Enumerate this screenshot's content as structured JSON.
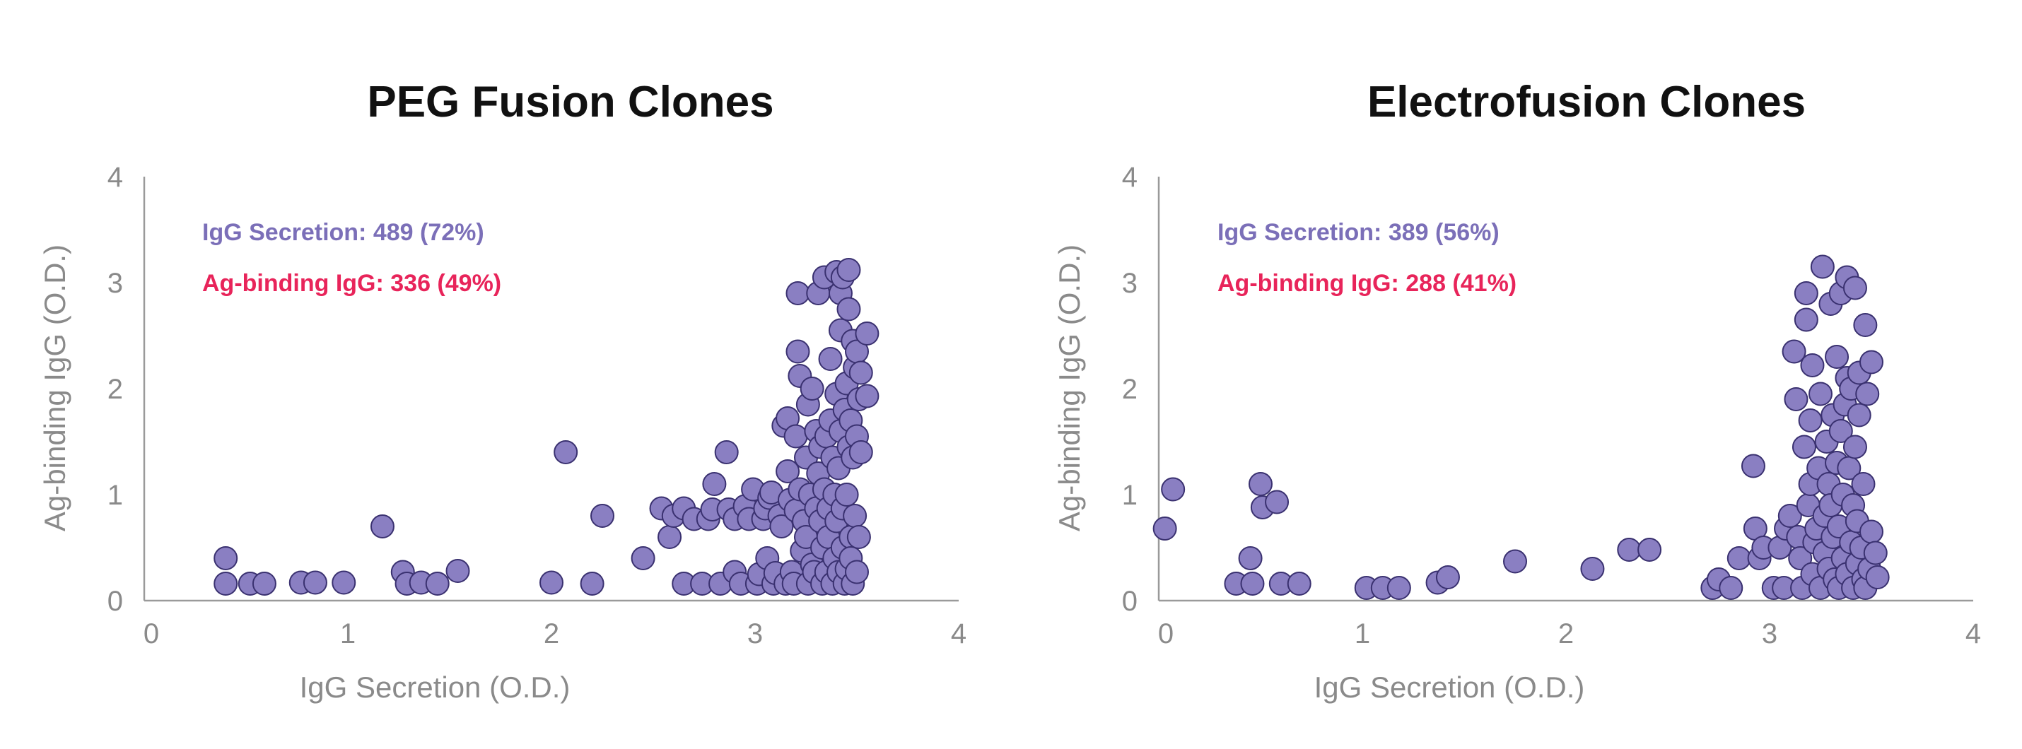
{
  "chart_data": [
    {
      "type": "scatter",
      "title": "PEG Fusion Clones",
      "xlabel": "IgG Secretion (O.D.)",
      "ylabel": "Ag-binding IgG (O.D.)",
      "xlim": [
        0,
        4
      ],
      "ylim": [
        0,
        4
      ],
      "xticks": [
        "0",
        "1",
        "2",
        "3",
        "4"
      ],
      "yticks": [
        "0",
        "1",
        "2",
        "3",
        "4"
      ],
      "annotations": [
        {
          "text": "IgG Secretion: 489 (72%)",
          "color": "#7b6fb8"
        },
        {
          "text": "Ag-binding IgG: 336 (49%)",
          "color": "#e8245a"
        }
      ],
      "point_color": "#8a7fc2",
      "points": [
        [
          0.4,
          0.4
        ],
        [
          0.4,
          0.16
        ],
        [
          0.52,
          0.16
        ],
        [
          0.59,
          0.16
        ],
        [
          0.77,
          0.17
        ],
        [
          0.84,
          0.17
        ],
        [
          0.98,
          0.17
        ],
        [
          1.17,
          0.7
        ],
        [
          1.27,
          0.27
        ],
        [
          1.29,
          0.16
        ],
        [
          1.36,
          0.17
        ],
        [
          1.44,
          0.16
        ],
        [
          1.54,
          0.28
        ],
        [
          2.0,
          0.17
        ],
        [
          2.07,
          1.4
        ],
        [
          2.2,
          0.16
        ],
        [
          2.25,
          0.8
        ],
        [
          2.45,
          0.4
        ],
        [
          2.54,
          0.87
        ],
        [
          2.58,
          0.6
        ],
        [
          2.6,
          0.8
        ],
        [
          2.65,
          0.87
        ],
        [
          2.65,
          0.16
        ],
        [
          2.7,
          0.77
        ],
        [
          2.74,
          0.16
        ],
        [
          2.77,
          0.77
        ],
        [
          2.79,
          0.86
        ],
        [
          2.8,
          1.1
        ],
        [
          2.83,
          0.16
        ],
        [
          2.86,
          1.4
        ],
        [
          2.87,
          0.86
        ],
        [
          2.9,
          0.27
        ],
        [
          2.9,
          0.77
        ],
        [
          2.93,
          0.16
        ],
        [
          2.95,
          0.89
        ],
        [
          2.97,
          0.77
        ],
        [
          2.99,
          1.05
        ],
        [
          3.01,
          0.16
        ],
        [
          3.02,
          0.25
        ],
        [
          3.04,
          0.77
        ],
        [
          3.05,
          0.87
        ],
        [
          3.06,
          0.4
        ],
        [
          3.07,
          0.97
        ],
        [
          3.08,
          1.02
        ],
        [
          3.09,
          0.16
        ],
        [
          3.1,
          0.26
        ],
        [
          3.12,
          0.8
        ],
        [
          3.13,
          0.7
        ],
        [
          3.14,
          1.65
        ],
        [
          3.15,
          0.16
        ],
        [
          3.16,
          1.72
        ],
        [
          3.16,
          1.22
        ],
        [
          3.17,
          0.95
        ],
        [
          3.18,
          0.27
        ],
        [
          3.19,
          0.16
        ],
        [
          3.2,
          1.55
        ],
        [
          3.2,
          0.85
        ],
        [
          3.21,
          2.35
        ],
        [
          3.21,
          2.9
        ],
        [
          3.22,
          2.12
        ],
        [
          3.22,
          1.05
        ],
        [
          3.23,
          0.47
        ],
        [
          3.24,
          0.75
        ],
        [
          3.25,
          0.6
        ],
        [
          3.25,
          1.35
        ],
        [
          3.26,
          0.16
        ],
        [
          3.26,
          1.85
        ],
        [
          3.27,
          1.0
        ],
        [
          3.28,
          2.0
        ],
        [
          3.28,
          0.34
        ],
        [
          3.29,
          0.27
        ],
        [
          3.3,
          1.6
        ],
        [
          3.3,
          0.87
        ],
        [
          3.31,
          1.2
        ],
        [
          3.31,
          2.9
        ],
        [
          3.32,
          0.75
        ],
        [
          3.32,
          1.45
        ],
        [
          3.33,
          0.5
        ],
        [
          3.33,
          0.16
        ],
        [
          3.34,
          1.05
        ],
        [
          3.34,
          3.05
        ],
        [
          3.35,
          0.27
        ],
        [
          3.35,
          1.55
        ],
        [
          3.36,
          0.87
        ],
        [
          3.36,
          0.6
        ],
        [
          3.37,
          2.28
        ],
        [
          3.37,
          1.7
        ],
        [
          3.38,
          1.35
        ],
        [
          3.38,
          0.16
        ],
        [
          3.39,
          0.4
        ],
        [
          3.39,
          1.0
        ],
        [
          3.4,
          3.1
        ],
        [
          3.4,
          1.95
        ],
        [
          3.4,
          0.75
        ],
        [
          3.41,
          1.25
        ],
        [
          3.41,
          0.27
        ],
        [
          3.42,
          2.55
        ],
        [
          3.42,
          2.9
        ],
        [
          3.42,
          1.6
        ],
        [
          3.43,
          3.05
        ],
        [
          3.43,
          0.5
        ],
        [
          3.43,
          0.87
        ],
        [
          3.44,
          1.8
        ],
        [
          3.44,
          0.16
        ],
        [
          3.45,
          1.0
        ],
        [
          3.45,
          2.05
        ],
        [
          3.45,
          0.3
        ],
        [
          3.46,
          1.45
        ],
        [
          3.46,
          2.75
        ],
        [
          3.46,
          3.12
        ],
        [
          3.47,
          0.6
        ],
        [
          3.47,
          1.7
        ],
        [
          3.47,
          0.4
        ],
        [
          3.48,
          2.45
        ],
        [
          3.48,
          1.35
        ],
        [
          3.48,
          0.16
        ],
        [
          3.49,
          2.2
        ],
        [
          3.49,
          0.8
        ],
        [
          3.5,
          2.35
        ],
        [
          3.5,
          1.55
        ],
        [
          3.5,
          0.27
        ],
        [
          3.51,
          1.9
        ],
        [
          3.51,
          0.6
        ],
        [
          3.52,
          1.4
        ],
        [
          3.52,
          2.15
        ],
        [
          3.55,
          2.52
        ],
        [
          3.55,
          1.93
        ]
      ]
    },
    {
      "type": "scatter",
      "title": "Electrofusion Clones",
      "xlabel": "IgG Secretion (O.D.)",
      "ylabel": "Ag-binding IgG (O.D.)",
      "xlim": [
        0,
        4
      ],
      "ylim": [
        0,
        4
      ],
      "xticks": [
        "0",
        "1",
        "2",
        "3",
        "4"
      ],
      "yticks": [
        "0",
        "1",
        "2",
        "3",
        "4"
      ],
      "annotations": [
        {
          "text": "IgG Secretion: 389 (56%)",
          "color": "#7b6fb8"
        },
        {
          "text": "Ag-binding IgG: 288 (41%)",
          "color": "#e8245a"
        }
      ],
      "point_color": "#8a7fc2",
      "points": [
        [
          0.03,
          0.68
        ],
        [
          0.07,
          1.05
        ],
        [
          0.38,
          0.16
        ],
        [
          0.45,
          0.4
        ],
        [
          0.46,
          0.16
        ],
        [
          0.5,
          1.1
        ],
        [
          0.51,
          0.88
        ],
        [
          0.58,
          0.93
        ],
        [
          0.6,
          0.16
        ],
        [
          0.69,
          0.16
        ],
        [
          1.02,
          0.12
        ],
        [
          1.1,
          0.12
        ],
        [
          1.18,
          0.12
        ],
        [
          1.37,
          0.17
        ],
        [
          1.42,
          0.22
        ],
        [
          1.75,
          0.37
        ],
        [
          2.13,
          0.3
        ],
        [
          2.31,
          0.48
        ],
        [
          2.41,
          0.48
        ],
        [
          2.72,
          0.12
        ],
        [
          2.75,
          0.2
        ],
        [
          2.81,
          0.12
        ],
        [
          2.85,
          0.4
        ],
        [
          2.92,
          1.27
        ],
        [
          2.93,
          0.68
        ],
        [
          2.95,
          0.4
        ],
        [
          2.97,
          0.5
        ],
        [
          3.02,
          0.12
        ],
        [
          3.05,
          0.5
        ],
        [
          3.07,
          0.12
        ],
        [
          3.08,
          0.68
        ],
        [
          3.1,
          0.8
        ],
        [
          3.12,
          2.35
        ],
        [
          3.13,
          1.9
        ],
        [
          3.14,
          0.6
        ],
        [
          3.15,
          0.4
        ],
        [
          3.16,
          0.12
        ],
        [
          3.17,
          1.45
        ],
        [
          3.18,
          2.65
        ],
        [
          3.18,
          2.9
        ],
        [
          3.19,
          0.9
        ],
        [
          3.2,
          1.1
        ],
        [
          3.2,
          1.7
        ],
        [
          3.21,
          0.25
        ],
        [
          3.21,
          2.22
        ],
        [
          3.22,
          0.55
        ],
        [
          3.23,
          0.68
        ],
        [
          3.24,
          1.25
        ],
        [
          3.25,
          0.12
        ],
        [
          3.25,
          1.95
        ],
        [
          3.26,
          3.15
        ],
        [
          3.27,
          0.45
        ],
        [
          3.27,
          0.8
        ],
        [
          3.28,
          1.5
        ],
        [
          3.29,
          0.3
        ],
        [
          3.29,
          1.1
        ],
        [
          3.3,
          2.8
        ],
        [
          3.3,
          0.9
        ],
        [
          3.31,
          1.75
        ],
        [
          3.31,
          0.6
        ],
        [
          3.32,
          0.2
        ],
        [
          3.33,
          2.3
        ],
        [
          3.33,
          1.3
        ],
        [
          3.34,
          0.12
        ],
        [
          3.34,
          0.7
        ],
        [
          3.35,
          2.9
        ],
        [
          3.35,
          1.6
        ],
        [
          3.36,
          1.0
        ],
        [
          3.36,
          0.4
        ],
        [
          3.37,
          1.85
        ],
        [
          3.38,
          3.05
        ],
        [
          3.38,
          2.1
        ],
        [
          3.38,
          0.25
        ],
        [
          3.39,
          1.25
        ],
        [
          3.4,
          0.55
        ],
        [
          3.4,
          2.0
        ],
        [
          3.41,
          0.12
        ],
        [
          3.41,
          0.9
        ],
        [
          3.42,
          2.95
        ],
        [
          3.42,
          1.45
        ],
        [
          3.43,
          0.75
        ],
        [
          3.43,
          0.35
        ],
        [
          3.44,
          1.75
        ],
        [
          3.44,
          2.15
        ],
        [
          3.45,
          0.5
        ],
        [
          3.46,
          1.1
        ],
        [
          3.46,
          0.2
        ],
        [
          3.47,
          2.6
        ],
        [
          3.47,
          0.12
        ],
        [
          3.48,
          1.95
        ],
        [
          3.49,
          0.3
        ],
        [
          3.5,
          2.25
        ],
        [
          3.5,
          0.65
        ],
        [
          3.52,
          0.45
        ],
        [
          3.53,
          0.22
        ]
      ]
    }
  ]
}
